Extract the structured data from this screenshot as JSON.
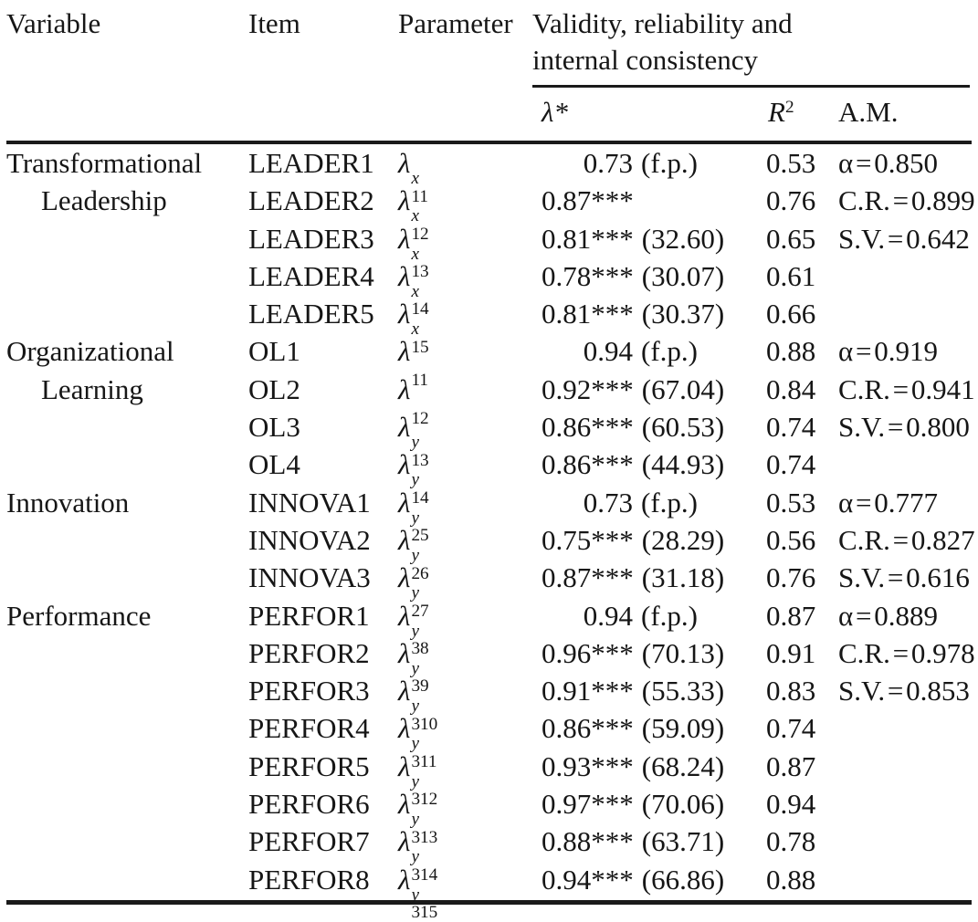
{
  "header": {
    "col_variable": "Variable",
    "col_item": "Item",
    "col_parameter": "Parameter",
    "span_line1": "Validity, reliability and",
    "span_line2": "internal consistency",
    "sub_lambda": "λ*",
    "sub_r2_base": "R",
    "sub_r2_sup": "2",
    "sub_am": "A.M."
  },
  "rows": [
    {
      "variable": "Transformational",
      "cont": false,
      "item": "LEADER1",
      "p_base": "λ",
      "p_sup": "x",
      "p_sub": "11",
      "lam": "0.73",
      "t": "(f.p.)",
      "r2": "0.53",
      "am": "α = 0.850"
    },
    {
      "variable": "Leadership",
      "cont": true,
      "item": "LEADER2",
      "p_base": "λ",
      "p_sup": "x",
      "p_sub": "12",
      "lam": "0.87***",
      "t": "",
      "r2": "0.76",
      "am": "C.R. = 0.899"
    },
    {
      "variable": "",
      "cont": false,
      "item": "LEADER3",
      "p_base": "λ",
      "p_sup": "x",
      "p_sub": "13",
      "lam": "0.81***",
      "t": "(32.60)",
      "r2": "0.65",
      "am": "S.V. = 0.642"
    },
    {
      "variable": "",
      "cont": false,
      "item": "LEADER4",
      "p_base": "λ",
      "p_sup": "x",
      "p_sub": "14",
      "lam": "0.78***",
      "t": "(30.07)",
      "r2": "0.61",
      "am": ""
    },
    {
      "variable": "",
      "cont": false,
      "item": "LEADER5",
      "p_base": "λ",
      "p_sup": "x",
      "p_sub": "15",
      "lam": "0.81***",
      "t": "(30.37)",
      "r2": "0.66",
      "am": ""
    },
    {
      "variable": "Organizational",
      "cont": false,
      "item": "OL1",
      "p_base": "λ",
      "p_sup": "",
      "p_sub": "11",
      "lam": "0.94",
      "t": "(f.p.)",
      "r2": "0.88",
      "am": "α = 0.919"
    },
    {
      "variable": "Learning",
      "cont": true,
      "item": "OL2",
      "p_base": "λ",
      "p_sup": "",
      "p_sub": "12",
      "lam": "0.92***",
      "t": "(67.04)",
      "r2": "0.84",
      "am": "C.R. = 0.941"
    },
    {
      "variable": "",
      "cont": false,
      "item": "OL3",
      "p_base": "λ",
      "p_sup": "y",
      "p_sub": "13",
      "lam": "0.86***",
      "t": "(60.53)",
      "r2": "0.74",
      "am": "S.V. = 0.800"
    },
    {
      "variable": "",
      "cont": false,
      "item": "OL4",
      "p_base": "λ",
      "p_sup": "y",
      "p_sub": "14",
      "lam": "0.86***",
      "t": "(44.93)",
      "r2": "0.74",
      "am": ""
    },
    {
      "variable": "Innovation",
      "cont": false,
      "item": "INNOVA1",
      "p_base": "λ",
      "p_sup": "y",
      "p_sub": "25",
      "lam": "0.73",
      "t": "(f.p.)",
      "r2": "0.53",
      "am": "α = 0.777"
    },
    {
      "variable": "",
      "cont": false,
      "item": "INNOVA2",
      "p_base": "λ",
      "p_sup": "y",
      "p_sub": "26",
      "lam": "0.75***",
      "t": "(28.29)",
      "r2": "0.56",
      "am": "C.R. = 0.827"
    },
    {
      "variable": "",
      "cont": false,
      "item": "INNOVA3",
      "p_base": "λ",
      "p_sup": "y",
      "p_sub": "27",
      "lam": "0.87***",
      "t": "(31.18)",
      "r2": "0.76",
      "am": "S.V. = 0.616"
    },
    {
      "variable": "Performance",
      "cont": false,
      "item": "PERFOR1",
      "p_base": "λ",
      "p_sup": "y",
      "p_sub": "38",
      "lam": "0.94",
      "t": "(f.p.)",
      "r2": "0.87",
      "am": "α = 0.889"
    },
    {
      "variable": "",
      "cont": false,
      "item": "PERFOR2",
      "p_base": "λ",
      "p_sup": "y",
      "p_sub": "39",
      "lam": "0.96***",
      "t": "(70.13)",
      "r2": "0.91",
      "am": "C.R. = 0.978"
    },
    {
      "variable": "",
      "cont": false,
      "item": "PERFOR3",
      "p_base": "λ",
      "p_sup": "y",
      "p_sub": "310",
      "lam": "0.91***",
      "t": "(55.33)",
      "r2": "0.83",
      "am": "S.V. = 0.853"
    },
    {
      "variable": "",
      "cont": false,
      "item": "PERFOR4",
      "p_base": "λ",
      "p_sup": "y",
      "p_sub": "311",
      "lam": "0.86***",
      "t": "(59.09)",
      "r2": "0.74",
      "am": ""
    },
    {
      "variable": "",
      "cont": false,
      "item": "PERFOR5",
      "p_base": "λ",
      "p_sup": "y",
      "p_sub": "312",
      "lam": "0.93***",
      "t": "(68.24)",
      "r2": "0.87",
      "am": ""
    },
    {
      "variable": "",
      "cont": false,
      "item": "PERFOR6",
      "p_base": "λ",
      "p_sup": "y",
      "p_sub": "313",
      "lam": "0.97***",
      "t": "(70.06)",
      "r2": "0.94",
      "am": ""
    },
    {
      "variable": "",
      "cont": false,
      "item": "PERFOR7",
      "p_base": "λ",
      "p_sup": "y",
      "p_sub": "314",
      "lam": "0.88***",
      "t": "(63.71)",
      "r2": "0.78",
      "am": ""
    },
    {
      "variable": "",
      "cont": false,
      "item": "PERFOR8",
      "p_base": "λ",
      "p_sup": "y",
      "p_sub": "315",
      "lam": "0.94***",
      "t": "(66.86)",
      "r2": "0.88",
      "am": ""
    }
  ]
}
